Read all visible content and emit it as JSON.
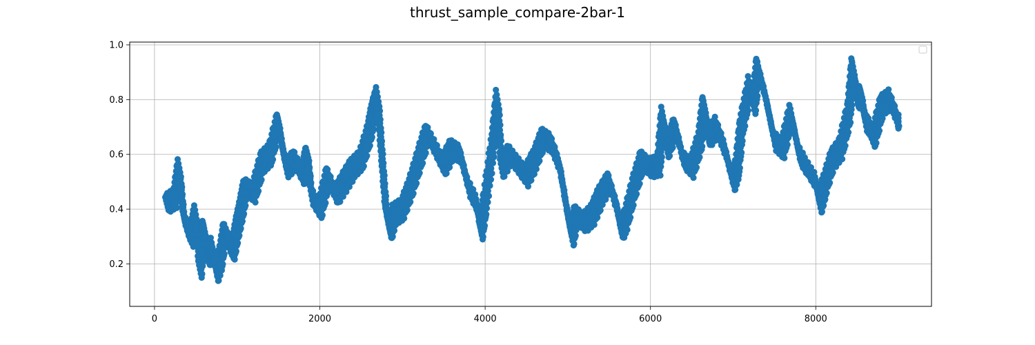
{
  "chart_data": {
    "type": "scatter",
    "title": "thrust_sample_compare-2bar-1",
    "xlabel": "",
    "ylabel": "",
    "xlim": [
      -300,
      9400
    ],
    "ylim": [
      0.045,
      1.01
    ],
    "xticks": [
      0,
      2000,
      4000,
      6000,
      8000
    ],
    "xtick_labels": [
      "0",
      "2000",
      "4000",
      "6000",
      "8000"
    ],
    "yticks": [
      0.2,
      0.4,
      0.6,
      0.8,
      1.0
    ],
    "ytick_labels": [
      "0.2",
      "0.4",
      "0.6",
      "0.8",
      "1.0"
    ],
    "grid": true,
    "legend": "top-right (empty)",
    "marker_color": "#1f77b4",
    "series": [
      {
        "x": [
          150,
          250,
          300,
          350,
          400,
          450,
          500,
          550,
          600,
          650,
          700,
          750,
          800,
          850,
          900,
          950,
          1000,
          1050,
          1100,
          1200,
          1300,
          1400,
          1500,
          1550,
          1600,
          1700,
          1800,
          1850,
          1900,
          2000,
          2100,
          2200,
          2300,
          2400,
          2500,
          2600,
          2650,
          2700,
          2750,
          2800,
          2850,
          2900,
          3000,
          3100,
          3200,
          3300,
          3400,
          3500,
          3600,
          3700,
          3800,
          3900,
          3950,
          4000,
          4100,
          4150,
          4200,
          4300,
          4400,
          4500,
          4600,
          4700,
          4800,
          4900,
          5000,
          5050,
          5100,
          5200,
          5300,
          5400,
          5500,
          5600,
          5650,
          5700,
          5800,
          5900,
          6000,
          6100,
          6150,
          6200,
          6300,
          6400,
          6500,
          6600,
          6650,
          6700,
          6800,
          6900,
          7000,
          7050,
          7100,
          7200,
          7250,
          7300,
          7400,
          7500,
          7600,
          7700,
          7800,
          7900,
          8000,
          8050,
          8100,
          8200,
          8300,
          8400,
          8450,
          8500,
          8550,
          8600,
          8650,
          8700,
          8800,
          8900,
          9000
        ],
        "y": [
          0.42,
          0.44,
          0.55,
          0.38,
          0.33,
          0.3,
          0.38,
          0.18,
          0.33,
          0.22,
          0.26,
          0.17,
          0.22,
          0.32,
          0.28,
          0.25,
          0.33,
          0.4,
          0.48,
          0.46,
          0.57,
          0.6,
          0.72,
          0.62,
          0.55,
          0.58,
          0.52,
          0.6,
          0.45,
          0.4,
          0.52,
          0.45,
          0.5,
          0.55,
          0.58,
          0.68,
          0.76,
          0.81,
          0.6,
          0.4,
          0.32,
          0.38,
          0.4,
          0.48,
          0.58,
          0.68,
          0.62,
          0.56,
          0.62,
          0.6,
          0.48,
          0.42,
          0.32,
          0.43,
          0.65,
          0.8,
          0.55,
          0.6,
          0.56,
          0.52,
          0.58,
          0.66,
          0.64,
          0.56,
          0.38,
          0.3,
          0.38,
          0.35,
          0.38,
          0.45,
          0.5,
          0.4,
          0.32,
          0.36,
          0.48,
          0.58,
          0.55,
          0.56,
          0.74,
          0.62,
          0.7,
          0.58,
          0.55,
          0.65,
          0.78,
          0.66,
          0.7,
          0.62,
          0.5,
          0.55,
          0.7,
          0.85,
          0.78,
          0.92,
          0.8,
          0.65,
          0.62,
          0.75,
          0.6,
          0.55,
          0.5,
          0.42,
          0.48,
          0.58,
          0.62,
          0.75,
          0.92,
          0.8,
          0.82,
          0.72,
          0.7,
          0.66,
          0.78,
          0.8,
          0.72
        ]
      }
    ]
  }
}
